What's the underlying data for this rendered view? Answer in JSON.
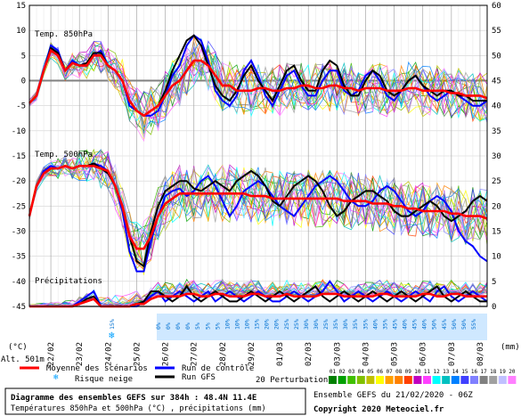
{
  "chart_data": {
    "type": "line",
    "title": "Diagramme des ensembles GEFS sur 384h : 48.4N 11.4E",
    "subtitle": "Températures 850hPa et 500hPa (°C) , précipitations (mm)",
    "run_info": "Ensemble GEFS du 21/02/2020 - 06Z",
    "copyright": "Copyright 2020 Meteociel.fr",
    "altitude": "Alt. 501m",
    "left_unit": "(°C)",
    "right_unit": "(mm)",
    "panel_labels": {
      "t850": "Temp. 850hPa",
      "t500": "Temp. 500hPa",
      "precip": "Précipitations"
    },
    "left_ticks": [
      "15",
      "10",
      "5",
      "0",
      "-5",
      "-10",
      "-15",
      "-20",
      "-25",
      "-30",
      "-35",
      "-40",
      "-45"
    ],
    "right_ticks": [
      "60",
      "55",
      "50",
      "45",
      "40",
      "35",
      "30",
      "25",
      "20",
      "15",
      "10",
      "5",
      "0"
    ],
    "x_ticks": [
      "22/02",
      "23/02",
      "24/02",
      "25/02",
      "26/02",
      "27/02",
      "28/02",
      "29/02",
      "01/03",
      "02/03",
      "03/03",
      "04/03",
      "05/03",
      "06/03",
      "07/03",
      "08/03"
    ],
    "legend": {
      "mean": "Moyenne des scénarios",
      "control": "Run de contrôle",
      "gfs": "Run GFS",
      "snow": "Risque neige",
      "perturbations": "20 Perturbations",
      "pert_numbers": [
        "01",
        "02",
        "03",
        "04",
        "05",
        "06",
        "07",
        "08",
        "09",
        "10",
        "11",
        "12",
        "13",
        "14",
        "15",
        "16",
        "17",
        "18",
        "19",
        "20"
      ]
    },
    "snow_risk_pct": [
      "15%",
      "0%",
      "0%",
      "0%",
      "0%",
      "5%",
      "5%",
      "5%",
      "10%",
      "10%",
      "10%",
      "15%",
      "20%",
      "20%",
      "25%",
      "25%",
      "30%",
      "30%",
      "25%",
      "35%",
      "30%",
      "35%",
      "35%",
      "40%",
      "35%",
      "45%",
      "40%",
      "45%",
      "40%",
      "50%",
      "45%",
      "50%",
      "50%",
      "55%"
    ],
    "x": [
      0,
      6,
      12,
      18,
      24,
      30,
      36,
      42,
      48,
      54,
      60,
      66,
      72,
      78,
      84,
      90,
      96,
      102,
      108,
      114,
      120,
      126,
      132,
      138,
      144,
      150,
      156,
      162,
      168,
      174,
      180,
      186,
      192,
      198,
      204,
      210,
      216,
      222,
      228,
      234,
      240,
      246,
      252,
      258,
      264,
      270,
      276,
      282,
      288,
      294,
      300,
      306,
      312,
      318,
      324,
      330,
      336,
      342,
      348,
      354,
      360,
      366,
      372,
      378,
      384
    ],
    "series": [
      {
        "name": "Moyenne des scénarios",
        "group": "t850",
        "values": [
          -4.5,
          -3,
          2,
          6,
          5,
          2,
          3.5,
          3,
          3,
          5,
          5,
          3,
          2,
          0,
          -4,
          -6,
          -7,
          -6,
          -5,
          -3,
          -1,
          0,
          2,
          4,
          4,
          3,
          1,
          -1,
          -1,
          -2,
          -2,
          -2,
          -1.5,
          -1.5,
          -2,
          -2,
          -1.5,
          -1.5,
          -1,
          -1,
          -1.5,
          -1.5,
          -1,
          -1,
          -1.5,
          -1.5,
          -2,
          -1.5,
          -1.5,
          -1.5,
          -2,
          -2,
          -2,
          -1.5,
          -1.5,
          -2,
          -2,
          -2,
          -2,
          -2.5,
          -2.5,
          -3,
          -3,
          -3,
          -3.5
        ]
      },
      {
        "name": "Run de contrôle",
        "group": "t850",
        "values": [
          -4.5,
          -3,
          2,
          7,
          6,
          2,
          4,
          3,
          3,
          5,
          6,
          3,
          2,
          0,
          -5,
          -6,
          -7,
          -7,
          -6,
          -3,
          1,
          3,
          7,
          9,
          8,
          4,
          -2,
          -4,
          -5,
          -3,
          2,
          4,
          1,
          -3,
          -5,
          -2,
          1,
          2,
          -1,
          -3,
          -3,
          0,
          2,
          2,
          -2,
          -3,
          -2,
          1,
          2,
          0,
          -3,
          -4,
          -2,
          0,
          1,
          -1,
          -3,
          -4,
          -3,
          -2,
          -3,
          -4,
          -5,
          -5,
          -4
        ]
      },
      {
        "name": "Run GFS",
        "group": "t850",
        "values": [
          -4.5,
          -3,
          2,
          6.5,
          5.5,
          2,
          3.5,
          3,
          3.5,
          5.5,
          5.5,
          3,
          2,
          0,
          -4,
          -6,
          -7,
          -6,
          -5,
          -2,
          2,
          5,
          8,
          9,
          7,
          3,
          -1,
          -3,
          -4,
          -2,
          1,
          3,
          0,
          -2,
          -4,
          -1,
          2,
          3,
          0,
          -2,
          -2,
          2,
          4,
          3,
          -1,
          -3,
          -3,
          0,
          2,
          1,
          -2,
          -3,
          -2,
          0,
          1,
          -1,
          -2,
          -3,
          -2,
          -2,
          -3,
          -3,
          -4,
          -4,
          -4
        ]
      },
      {
        "name": "Moyenne des scénarios",
        "group": "t500",
        "values": [
          -27,
          -21,
          -18.5,
          -17.5,
          -17.5,
          -17,
          -17.5,
          -17,
          -17,
          -17,
          -17.5,
          -18,
          -21,
          -25,
          -31,
          -33.5,
          -33.5,
          -31,
          -27,
          -24.5,
          -23.5,
          -22.5,
          -22.5,
          -22.5,
          -22.5,
          -22.5,
          -22.5,
          -22.5,
          -22.5,
          -22.5,
          -22.5,
          -23,
          -23,
          -23,
          -23.5,
          -23.5,
          -23.5,
          -23.5,
          -23.5,
          -23.5,
          -23.5,
          -23.5,
          -23.5,
          -23.5,
          -24,
          -24,
          -24,
          -24,
          -24.5,
          -24.5,
          -24.5,
          -25,
          -25,
          -25.5,
          -25.5,
          -26,
          -26,
          -26,
          -26,
          -26.5,
          -26.5,
          -27,
          -27,
          -27,
          -27.5
        ]
      },
      {
        "name": "Run de contrôle",
        "group": "t500",
        "values": [
          -27,
          -21,
          -18,
          -17,
          -17.5,
          -17,
          -17.5,
          -17,
          -17,
          -16.5,
          -17,
          -18,
          -21,
          -26,
          -34,
          -38,
          -38,
          -32,
          -27,
          -23,
          -22,
          -21.5,
          -23,
          -22,
          -20,
          -19,
          -21,
          -24,
          -27,
          -25,
          -22,
          -21,
          -20,
          -21,
          -23,
          -25,
          -26,
          -27,
          -25,
          -23,
          -21,
          -20,
          -19,
          -20,
          -22,
          -24,
          -25,
          -25,
          -24,
          -22,
          -21,
          -22,
          -24,
          -26,
          -27,
          -26,
          -24,
          -23,
          -24,
          -26,
          -30,
          -32,
          -33,
          -35,
          -36
        ]
      },
      {
        "name": "Run GFS",
        "group": "t500",
        "values": [
          -27,
          -21,
          -18.5,
          -17.5,
          -17.5,
          -17,
          -17.5,
          -17,
          -17,
          -16.5,
          -17.5,
          -18.5,
          -21,
          -25,
          -31,
          -36,
          -37,
          -30,
          -25,
          -22,
          -21,
          -20,
          -20,
          -21.5,
          -22,
          -21,
          -20,
          -21,
          -22,
          -20,
          -19,
          -18,
          -19,
          -21,
          -24,
          -25,
          -23,
          -21,
          -20,
          -19,
          -20,
          -22,
          -25,
          -27,
          -26,
          -24,
          -23,
          -22,
          -22,
          -23,
          -24,
          -26,
          -27,
          -27,
          -26,
          -25,
          -24,
          -25,
          -27,
          -28,
          -27,
          -26,
          -24,
          -23,
          -24
        ]
      },
      {
        "name": "Moyenne des scénarios",
        "group": "precip",
        "values": [
          -45,
          -45,
          -45,
          -45,
          -45,
          -45,
          -45,
          -44.5,
          -44,
          -43.5,
          -45,
          -45,
          -45,
          -45,
          -45,
          -44.5,
          -44.5,
          -43.5,
          -43,
          -43,
          -43,
          -43,
          -42.5,
          -42.5,
          -43,
          -43,
          -42.5,
          -42.5,
          -43,
          -43,
          -43,
          -42.5,
          -42.5,
          -43,
          -43,
          -43,
          -42.5,
          -43,
          -43,
          -43,
          -43,
          -42.5,
          -42.5,
          -42.5,
          -43,
          -43,
          -43,
          -43,
          -43,
          -42.5,
          -42.5,
          -43,
          -43,
          -43,
          -43,
          -42.5,
          -42.5,
          -43,
          -43,
          -42.5,
          -42.5,
          -43,
          -43,
          -43,
          -43
        ]
      },
      {
        "name": "Run de contrôle",
        "group": "precip",
        "values": [
          -45,
          -45,
          -45,
          -45,
          -45,
          -45,
          -45,
          -44,
          -43,
          -42,
          -45,
          -45,
          -45,
          -45,
          -45,
          -45,
          -44,
          -43,
          -42,
          -44,
          -43,
          -42,
          -43,
          -44,
          -43,
          -42,
          -44,
          -43,
          -42,
          -43,
          -44,
          -43,
          -42,
          -43,
          -44,
          -44,
          -43,
          -42,
          -43,
          -44,
          -43,
          -42,
          -40,
          -42,
          -44,
          -43,
          -42,
          -43,
          -44,
          -43,
          -42,
          -43,
          -44,
          -43,
          -42,
          -43,
          -44,
          -42,
          -41,
          -43,
          -44,
          -43,
          -42,
          -43,
          -44
        ]
      },
      {
        "name": "Run GFS",
        "group": "precip",
        "values": [
          -45,
          -45,
          -45,
          -45,
          -45,
          -45,
          -45,
          -44.5,
          -43.5,
          -43,
          -45,
          -45,
          -45,
          -45,
          -45,
          -44.5,
          -44,
          -42,
          -42,
          -43,
          -44,
          -43,
          -41,
          -43,
          -44,
          -43,
          -42,
          -43,
          -44,
          -44,
          -43,
          -42,
          -43,
          -44,
          -43,
          -42,
          -43,
          -44,
          -43,
          -42,
          -41,
          -43,
          -44,
          -43,
          -42,
          -43,
          -44,
          -43,
          -42,
          -43,
          -44,
          -43,
          -42,
          -43,
          -44,
          -43,
          -42,
          -41,
          -43,
          -44,
          -43,
          -42,
          -43,
          -44,
          -44
        ]
      }
    ],
    "ylim_left": [
      -45,
      15
    ],
    "ylim_right": [
      0,
      60
    ],
    "xlim_hours": [
      0,
      384
    ],
    "grid": true,
    "legend_position": "bottom"
  },
  "colors": {
    "mean": "#ff0000",
    "control": "#0000ff",
    "gfs": "#000000",
    "grid": "#d0d0d0",
    "zero_line": "#808080",
    "snow": "#00a0ff",
    "perts": [
      "#008000",
      "#00a000",
      "#40c000",
      "#80c000",
      "#c0c000",
      "#ffff00",
      "#ffa000",
      "#ff8000",
      "#ff4000",
      "#c000c0",
      "#ff40ff",
      "#00ffff",
      "#00c0c0",
      "#0080ff",
      "#4040ff",
      "#8080ff",
      "#808080",
      "#a0a0a0",
      "#c0c0ff",
      "#ff80ff"
    ]
  }
}
